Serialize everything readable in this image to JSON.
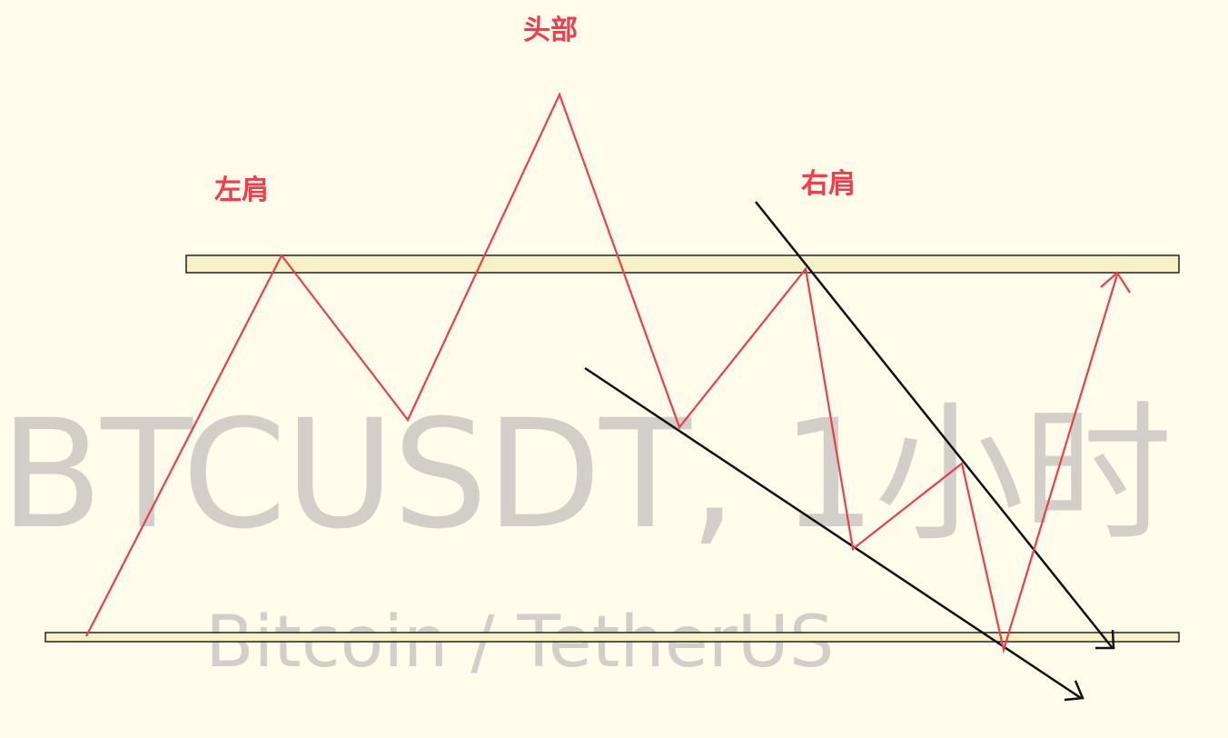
{
  "watermark": {
    "symbol": "BTCUSDT, 1小时",
    "pair_name": "Bitcoin / TetherUS"
  },
  "labels": {
    "head": "头部",
    "left_shoulder": "左肩",
    "right_shoulder": "右肩"
  },
  "colors": {
    "background": "#fffceb",
    "price_path": "#ef3d4e",
    "trend_lines": "#111111",
    "zone_fill": "#f7f1c8",
    "zone_border": "#222222",
    "label": "#ef3d4e",
    "watermark": "#c9c8c2"
  }
}
